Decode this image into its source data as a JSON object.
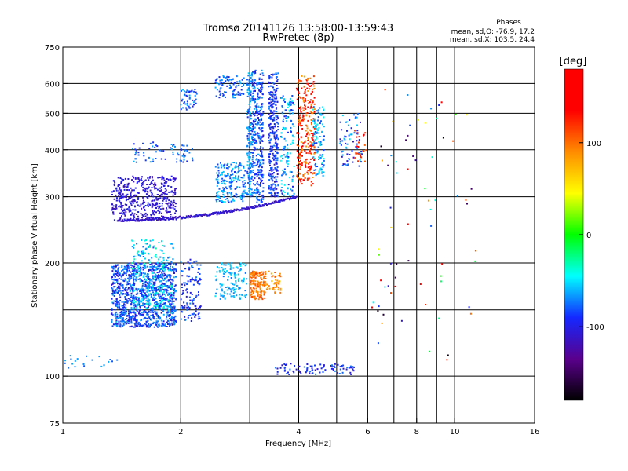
{
  "header": {
    "title_line1": "Tromsø 20141126 13:58:00-13:59:43",
    "title_line2": "RwPretec (8p)"
  },
  "stats": {
    "heading": "Phases",
    "line_o": "mean, sd,O: -76.9, 17.2",
    "line_x": "mean, sd,X: 103.5, 24.4"
  },
  "chart_data": {
    "type": "scatter",
    "xlabel": "Frequency [MHz]",
    "ylabel": "Stationary phase Virtual Height [km]",
    "xscale": "log",
    "yscale": "log",
    "xlim": [
      1,
      16
    ],
    "ylim": [
      75,
      750
    ],
    "xticks": [
      1,
      2,
      4,
      6,
      8,
      10,
      16
    ],
    "xtick_labels": [
      "1",
      "2",
      "4",
      "6",
      "8",
      "10",
      "16"
    ],
    "xgrid": [
      2,
      3,
      4,
      5,
      6,
      7,
      8,
      9,
      10
    ],
    "yticks": [
      75,
      100,
      200,
      300,
      400,
      500,
      600,
      750
    ],
    "ytick_labels": [
      "75",
      "100",
      "200",
      "300",
      "400",
      "500",
      "600",
      "750"
    ],
    "ygrid": [
      100,
      150,
      200,
      300,
      400,
      500,
      600
    ],
    "grid": true,
    "colorbar": {
      "label": "[deg]",
      "range": [
        -180,
        180
      ],
      "ticks": [
        100,
        0,
        -100
      ],
      "tick_labels": [
        "100",
        "0",
        "-100"
      ],
      "colors": [
        "#000000",
        "#5a008c",
        "#1428ff",
        "#00ffff",
        "#00ff00",
        "#ffff00",
        "#ff8c00",
        "#ff0000",
        "#ff0000"
      ]
    },
    "series": [
      {
        "x_range": [
          1.33,
          1.95
        ],
        "y_range": [
          135,
          200
        ],
        "phase_range": [
          -110,
          -60
        ],
        "count": 1100
      },
      {
        "x_range": [
          1.33,
          1.95
        ],
        "y_range": [
          260,
          340
        ],
        "phase_range": [
          -120,
          -95
        ],
        "count": 450
      },
      {
        "x_range": [
          1.5,
          1.92
        ],
        "y_range": [
          150,
          230
        ],
        "phase_range": [
          -80,
          -30
        ],
        "count": 250
      },
      {
        "x_range": [
          2.0,
          2.25
        ],
        "y_range": [
          140,
          205
        ],
        "phase_range": [
          -110,
          -70
        ],
        "count": 120
      },
      {
        "x_range": [
          1.5,
          2.15
        ],
        "y_range": [
          370,
          420
        ],
        "phase_range": [
          -100,
          -60
        ],
        "count": 70
      },
      {
        "x_range": [
          2.0,
          2.2
        ],
        "y_range": [
          510,
          580
        ],
        "phase_range": [
          -100,
          -50
        ],
        "count": 50
      },
      {
        "x_range": [
          2.45,
          2.95
        ],
        "y_range": [
          160,
          200
        ],
        "phase_range": [
          -75,
          -45
        ],
        "count": 130
      },
      {
        "x_range": [
          2.45,
          2.95
        ],
        "y_range": [
          290,
          370
        ],
        "phase_range": [
          -90,
          -50
        ],
        "count": 190
      },
      {
        "x_range": [
          2.45,
          2.9
        ],
        "y_range": [
          550,
          630
        ],
        "phase_range": [
          -95,
          -60
        ],
        "count": 90
      },
      {
        "x_range": [
          2.95,
          3.05
        ],
        "y_range": [
          300,
          640
        ],
        "phase_range": [
          -90,
          -50
        ],
        "count": 180
      },
      {
        "x_range": [
          3.05,
          3.25
        ],
        "y_range": [
          290,
          650
        ],
        "phase_range": [
          -110,
          -60
        ],
        "count": 330
      },
      {
        "x_range": [
          3.35,
          3.55
        ],
        "y_range": [
          300,
          640
        ],
        "phase_range": [
          -110,
          -70
        ],
        "count": 300
      },
      {
        "x_range": [
          3.6,
          3.9
        ],
        "y_range": [
          300,
          560
        ],
        "phase_range": [
          -95,
          -40
        ],
        "count": 140
      },
      {
        "x_range": [
          3.95,
          4.4
        ],
        "y_range": [
          320,
          630
        ],
        "phase_range": [
          80,
          160
        ],
        "count": 280
      },
      {
        "x_range": [
          4.35,
          4.65
        ],
        "y_range": [
          340,
          520
        ],
        "phase_range": [
          -90,
          -40
        ],
        "count": 110
      },
      {
        "x_range": [
          5.1,
          5.8
        ],
        "y_range": [
          360,
          500
        ],
        "phase_range": [
          -110,
          -50
        ],
        "count": 70
      },
      {
        "x_range": [
          5.5,
          5.95
        ],
        "y_range": [
          370,
          450
        ],
        "phase_range": [
          100,
          160
        ],
        "count": 25
      },
      {
        "x_range": [
          3.0,
          3.3
        ],
        "y_range": [
          160,
          190
        ],
        "phase_range": [
          85,
          115
        ],
        "count": 150
      },
      {
        "x_range": [
          3.3,
          3.6
        ],
        "y_range": [
          165,
          190
        ],
        "phase_range": [
          70,
          110
        ],
        "count": 50
      },
      {
        "x_range": [
          3.45,
          5.6
        ],
        "y_range": [
          101,
          108
        ],
        "phase_range": [
          -110,
          -70
        ],
        "count": 90
      },
      {
        "x_range": [
          1.0,
          1.4
        ],
        "y_range": [
          105,
          115
        ],
        "phase_range": [
          -80,
          -60
        ],
        "count": 20
      },
      {
        "x_range": [
          6.0,
          11.5
        ],
        "y_range": [
          110,
          590
        ],
        "phase_range": [
          -180,
          180
        ],
        "count": 70
      }
    ],
    "ridge": {
      "x_start": 1.38,
      "x_end": 3.95,
      "y_start": 260,
      "y_end": 300,
      "phase": -110
    }
  }
}
